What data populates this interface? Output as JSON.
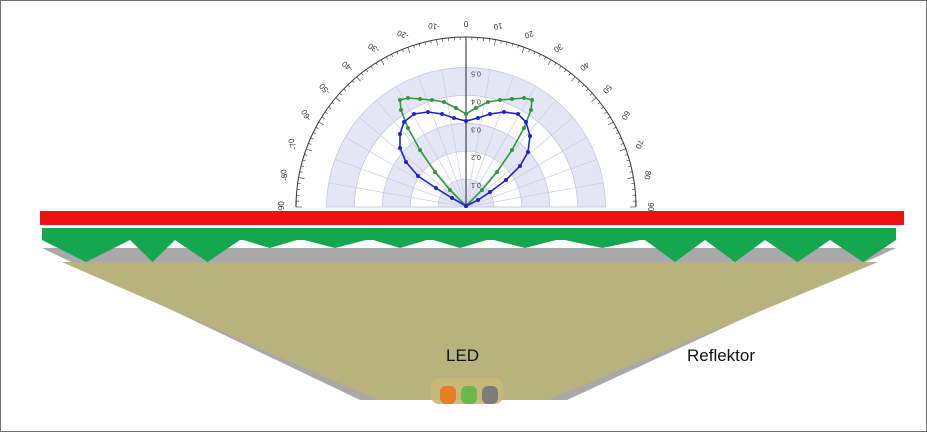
{
  "labels": {
    "led": "LED",
    "reflector": "Reflektor"
  },
  "polar_chart": {
    "angle_labels_left": [
      "10",
      "20",
      "30",
      "40",
      "50",
      "60",
      "70",
      "80",
      "90"
    ],
    "angle_labels_right": [
      "-10",
      "-20",
      "-30",
      "-40",
      "-50",
      "-60",
      "-70",
      "-80",
      "-90"
    ],
    "angle_label_center": "0",
    "radial_labels": [
      "0.1",
      "0.2",
      "0.3",
      "0.4",
      "0.5"
    ]
  },
  "colors": {
    "diffuser_red": "#ee1111",
    "prism_green": "#15a650",
    "reflector_gray": "#a9a9a9",
    "cavity_khaki": "#b7b27e",
    "series_blue": "#1f24c9",
    "series_green": "#2f9a3a",
    "polar_band": "#dcdff2",
    "led_colors": [
      "#e67b28",
      "#6bb84a",
      "#7c7c7c"
    ]
  },
  "icons": [
    "led-chip-icon"
  ]
}
